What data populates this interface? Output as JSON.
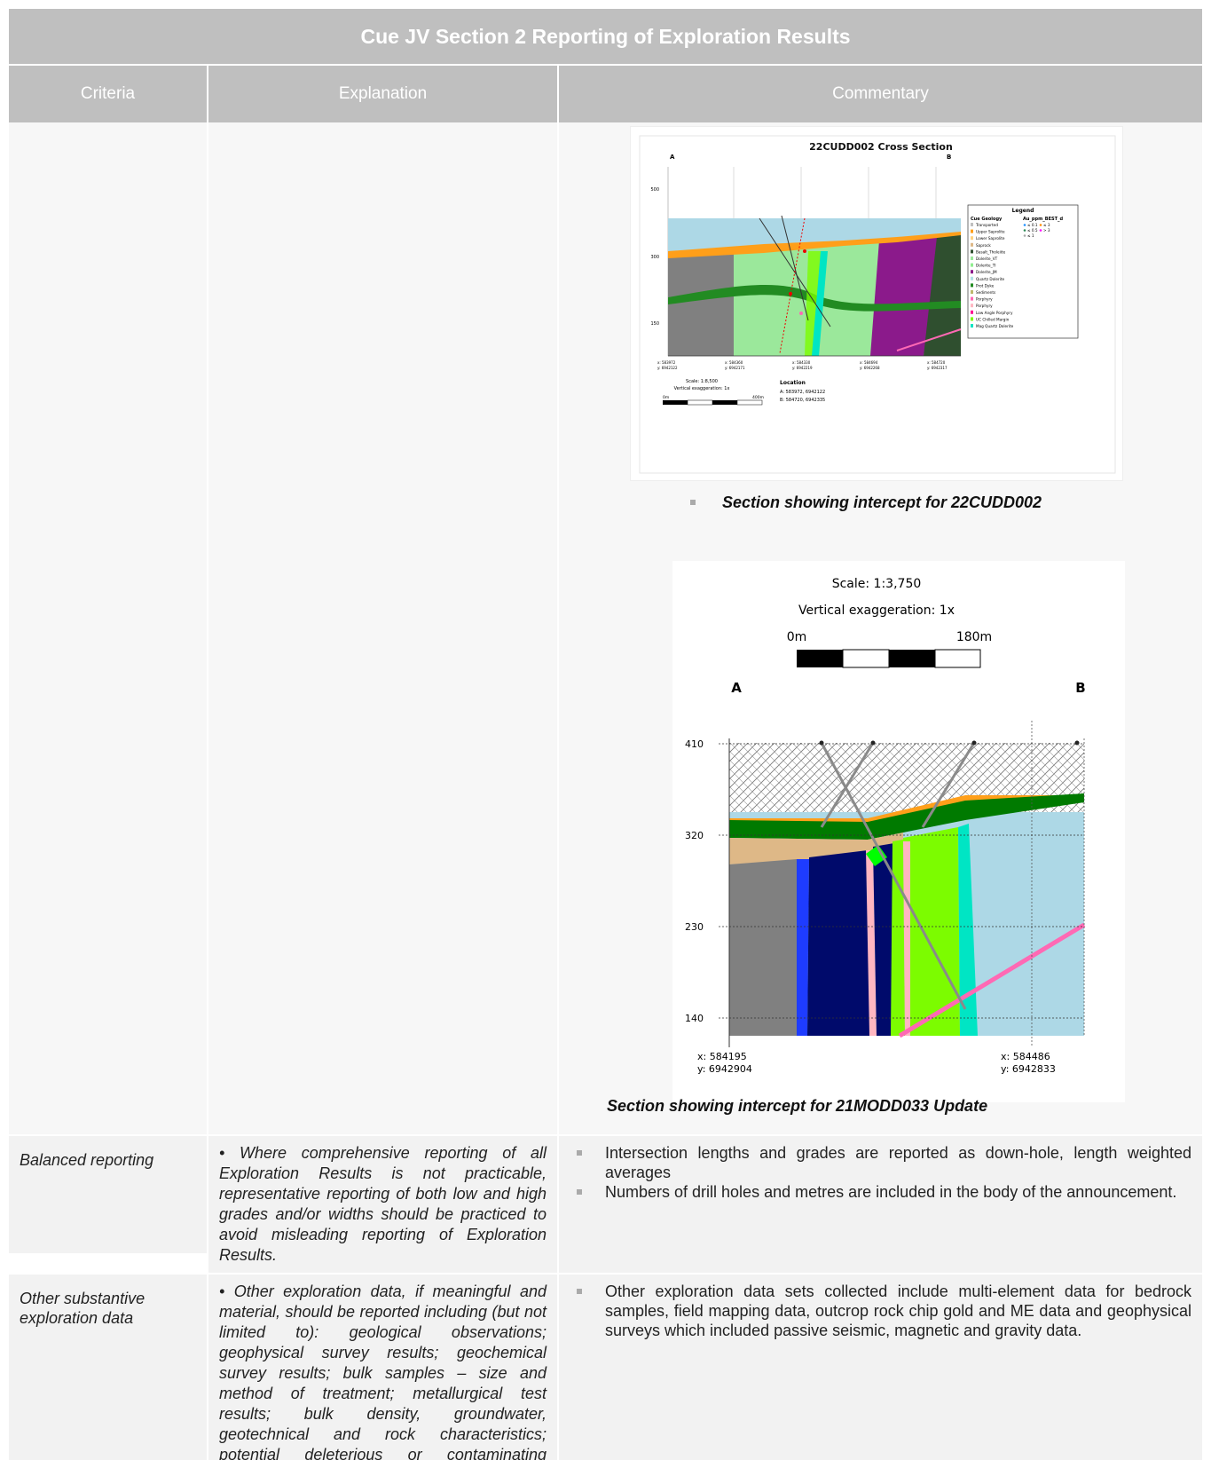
{
  "header": {
    "title": "Cue JV Section 2 Reporting of Exploration Results",
    "col_criteria": "Criteria",
    "col_explanation": "Explanation",
    "col_commentary": "Commentary"
  },
  "figure1": {
    "title": "22CUDD002 Cross Section",
    "end_a": "A",
    "end_b": "B",
    "legend_title": "Legend",
    "legend_geo_heading": "Cue Geology",
    "legend_au_heading": "Au_ppm_BEST_d",
    "legend_items": [
      "Transported",
      "Upper Saprolite",
      "Lower Saprolite",
      "Saprock",
      "Basalt_Tholeiite",
      "Dolerite_VT",
      "Dolerite_TI",
      "Dolerite_JM",
      "Quartz Dolerite",
      "Prot Dyke",
      "Sediments",
      "Porphyry",
      "Porphyry",
      "Low Angle Porphyry",
      "UC Chilled Margin",
      "Mag Quartz Dolerite"
    ],
    "au_items": [
      "≤ 0.1",
      "≤ 0.5",
      "≤ 1",
      "≤ 3",
      "> 3"
    ],
    "y_ticks": [
      "500",
      "300",
      "150"
    ],
    "coords": [
      "x: 583972\ny: 6942122",
      "x: 584360\ny: 6942171",
      "x: 584330\ny: 6942219",
      "x: 584694\ny: 6942268",
      "x: 584720\ny: 6942317"
    ],
    "scale": "Scale: 1:8,500",
    "exaggeration": "Vertical exaggeration: 1x",
    "scale_left": "0m",
    "scale_right": "400m",
    "location_title": "Location",
    "location_a": "A:  583972, 6942122",
    "location_b": "B:  584720, 6942335",
    "caption": "Section showing intercept for 22CUDD002"
  },
  "figure2": {
    "scale": "Scale: 1:3,750",
    "exaggeration": "Vertical exaggeration: 1x",
    "scale_left": "0m",
    "scale_right": "180m",
    "end_a": "A",
    "end_b": "B",
    "y_ticks": [
      "410",
      "320",
      "230",
      "140"
    ],
    "coord_left_x": "x: 584195",
    "coord_left_y": "y: 6942904",
    "coord_right_x": "x: 584486",
    "coord_right_y": "y: 6942833",
    "caption": "Section showing intercept for 21MODD033 Update"
  },
  "rows": [
    {
      "criteria": "Balanced reporting",
      "explanation": "• Where comprehensive reporting of all Exploration Results is not practicable, representative reporting of both low and high grades and/or widths should be practiced to avoid misleading reporting of Exploration Results.",
      "commentary": [
        "Intersection lengths and grades are reported as down-hole, length weighted averages",
        "Numbers of drill holes and metres are included in the body of the announcement."
      ]
    },
    {
      "criteria": "Other substantive exploration data",
      "explanation": "• Other exploration data, if meaningful and material, should be reported including (but not limited to): geological observations; geophysical survey results; geochemical survey results; bulk samples – size and method of treatment; metallurgical test results; bulk density, groundwater, geotechnical and rock characteristics; potential deleterious or contaminating substances.",
      "commentary": [
        "Other exploration data sets collected include multi-element data for bedrock samples, field mapping data, outcrop rock chip gold and ME data and geophysical surveys which included passive seismic, magnetic and gravity data."
      ]
    }
  ]
}
